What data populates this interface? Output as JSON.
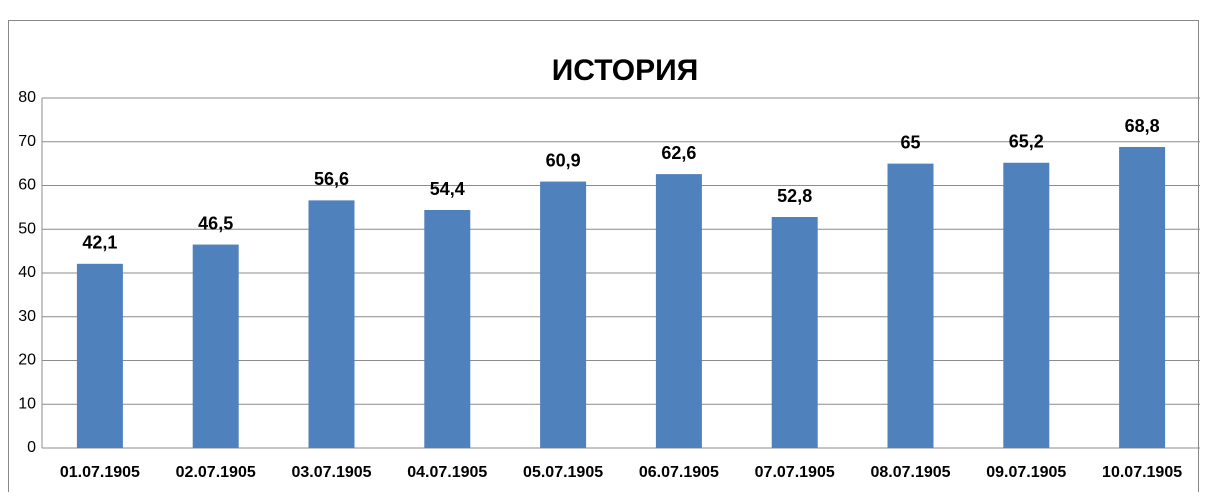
{
  "chart_data": {
    "type": "bar",
    "title": "ИСТОРИЯ",
    "categories": [
      "01.07.1905",
      "02.07.1905",
      "03.07.1905",
      "04.07.1905",
      "05.07.1905",
      "06.07.1905",
      "07.07.1905",
      "08.07.1905",
      "09.07.1905",
      "10.07.1905"
    ],
    "values": [
      42.1,
      46.5,
      56.6,
      54.4,
      60.9,
      62.6,
      52.8,
      65,
      65.2,
      68.8
    ],
    "value_labels": [
      "42,1",
      "46,5",
      "56,6",
      "54,4",
      "60,9",
      "62,6",
      "52,8",
      "65",
      "65,2",
      "68,8"
    ],
    "color": "#4f81bd",
    "ylim": [
      0,
      80
    ],
    "yticks": [
      0,
      10,
      20,
      30,
      40,
      50,
      60,
      70,
      80
    ],
    "grid": true
  }
}
